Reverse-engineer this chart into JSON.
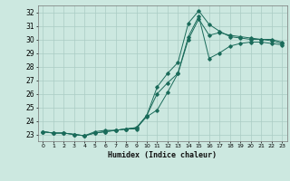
{
  "xlabel": "Humidex (Indice chaleur)",
  "background_color": "#cce8e0",
  "grid_color": "#aaccC4",
  "line_color": "#1a6b5a",
  "xlim": [
    -0.5,
    23.5
  ],
  "ylim": [
    22.5,
    32.5
  ],
  "xticks": [
    0,
    1,
    2,
    3,
    4,
    5,
    6,
    7,
    8,
    9,
    10,
    11,
    12,
    13,
    14,
    15,
    16,
    17,
    18,
    19,
    20,
    21,
    22,
    23
  ],
  "yticks": [
    23,
    24,
    25,
    26,
    27,
    28,
    29,
    30,
    31,
    32
  ],
  "series": [
    {
      "x": [
        0,
        1,
        2,
        3,
        4,
        5,
        6,
        7,
        8,
        9,
        10,
        11,
        12,
        13,
        14,
        15,
        16,
        17,
        18,
        19,
        20,
        21,
        22,
        23
      ],
      "y": [
        23.2,
        23.1,
        23.1,
        23.0,
        22.9,
        23.2,
        23.3,
        23.3,
        23.4,
        23.5,
        24.4,
        26.5,
        27.5,
        28.3,
        31.2,
        32.1,
        31.1,
        30.6,
        30.2,
        30.1,
        30.0,
        30.0,
        29.9,
        29.7
      ]
    },
    {
      "x": [
        0,
        1,
        2,
        3,
        4,
        5,
        6,
        7,
        8,
        9,
        10,
        11,
        12,
        13,
        14,
        15,
        16,
        17,
        18,
        19,
        20,
        21,
        22,
        23
      ],
      "y": [
        23.2,
        23.1,
        23.1,
        23.0,
        22.9,
        23.1,
        23.2,
        23.3,
        23.4,
        23.4,
        24.4,
        26.0,
        26.8,
        27.5,
        30.0,
        31.5,
        30.3,
        30.5,
        30.3,
        30.2,
        30.1,
        30.0,
        30.0,
        29.8
      ]
    },
    {
      "x": [
        0,
        1,
        2,
        3,
        4,
        5,
        6,
        7,
        8,
        9,
        10,
        11,
        12,
        13,
        14,
        15,
        16,
        17,
        18,
        19,
        20,
        21,
        22,
        23
      ],
      "y": [
        23.2,
        23.1,
        23.1,
        23.0,
        22.9,
        23.1,
        23.2,
        23.3,
        23.4,
        23.5,
        24.3,
        24.8,
        26.1,
        27.5,
        30.2,
        31.7,
        28.6,
        29.0,
        29.5,
        29.7,
        29.8,
        29.8,
        29.7,
        29.6
      ]
    }
  ]
}
